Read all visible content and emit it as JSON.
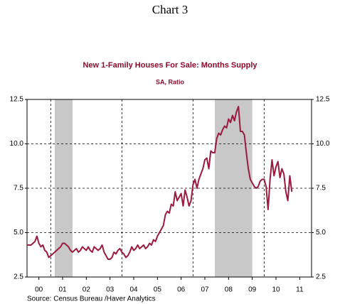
{
  "page_title": "Chart 3",
  "chart_data": {
    "type": "line",
    "title": "New 1-Family Houses For Sale: Months Supply",
    "subtitle": "SA, Ratio",
    "source": "Source:  Census Bureau /Haver Analytics",
    "color": "#9b1b3f",
    "xlim": [
      2000,
      2012
    ],
    "xticks": [
      {
        "value": 2000.5,
        "label": "00"
      },
      {
        "value": 2001.5,
        "label": "01"
      },
      {
        "value": 2002.5,
        "label": "02"
      },
      {
        "value": 2003.5,
        "label": "03"
      },
      {
        "value": 2004.5,
        "label": "04"
      },
      {
        "value": 2005.5,
        "label": "05"
      },
      {
        "value": 2006.5,
        "label": "06"
      },
      {
        "value": 2007.5,
        "label": "07"
      },
      {
        "value": 2008.5,
        "label": "08"
      },
      {
        "value": 2009.5,
        "label": "09"
      },
      {
        "value": 2010.5,
        "label": "10"
      },
      {
        "value": 2011.5,
        "label": "11"
      }
    ],
    "vlines": [
      2001,
      2004,
      2007,
      2010
    ],
    "shaded": [
      [
        2001.17,
        2001.92
      ],
      [
        2007.92,
        2009.5
      ]
    ],
    "ylim": [
      2.5,
      12.5
    ],
    "yticks": [
      2.5,
      {
        "value": 5,
        "label": "5.0"
      },
      7.5,
      {
        "value": 10,
        "label": "10.0"
      },
      12.5
    ],
    "y2lim": [
      2.5,
      12.5
    ],
    "y2ticks": [
      2.5,
      {
        "value": 5,
        "label": "5.0"
      },
      7.5,
      {
        "value": 10,
        "label": "10.0"
      },
      12.5
    ],
    "grid": true,
    "x": [
      2000,
      2000.083,
      2000.167,
      2000.25,
      2000.333,
      2000.417,
      2000.5,
      2000.583,
      2000.667,
      2000.75,
      2000.833,
      2000.917,
      2001,
      2001.083,
      2001.167,
      2001.25,
      2001.333,
      2001.417,
      2001.5,
      2001.583,
      2001.667,
      2001.75,
      2001.833,
      2001.917,
      2002,
      2002.083,
      2002.167,
      2002.25,
      2002.333,
      2002.417,
      2002.5,
      2002.583,
      2002.667,
      2002.75,
      2002.833,
      2002.917,
      2003,
      2003.083,
      2003.167,
      2003.25,
      2003.333,
      2003.417,
      2003.5,
      2003.583,
      2003.667,
      2003.75,
      2003.833,
      2003.917,
      2004,
      2004.083,
      2004.167,
      2004.25,
      2004.333,
      2004.417,
      2004.5,
      2004.583,
      2004.667,
      2004.75,
      2004.833,
      2004.917,
      2005,
      2005.083,
      2005.167,
      2005.25,
      2005.333,
      2005.417,
      2005.5,
      2005.583,
      2005.667,
      2005.75,
      2005.833,
      2005.917,
      2006,
      2006.083,
      2006.167,
      2006.25,
      2006.333,
      2006.417,
      2006.5,
      2006.583,
      2006.667,
      2006.75,
      2006.833,
      2006.917,
      2007,
      2007.083,
      2007.167,
      2007.25,
      2007.333,
      2007.417,
      2007.5,
      2007.583,
      2007.667,
      2007.75,
      2007.833,
      2007.917,
      2008,
      2008.083,
      2008.167,
      2008.25,
      2008.333,
      2008.417,
      2008.5,
      2008.583,
      2008.667,
      2008.75,
      2008.833,
      2008.917,
      2009,
      2009.083,
      2009.167,
      2009.25,
      2009.333,
      2009.417,
      2009.5,
      2009.583,
      2009.667,
      2009.75,
      2009.833,
      2009.917,
      2010,
      2010.083,
      2010.167,
      2010.25,
      2010.333,
      2010.417,
      2010.5,
      2010.583,
      2010.667,
      2010.75,
      2010.833,
      2010.917,
      2011,
      2011.083,
      2011.167
    ],
    "values": [
      4.3,
      4.3,
      4.3,
      4.4,
      4.5,
      4.8,
      4.4,
      4.2,
      4.3,
      4.0,
      3.9,
      3.6,
      3.7,
      3.8,
      3.9,
      4.0,
      4.1,
      4.2,
      4.4,
      4.4,
      4.3,
      4.2,
      4.0,
      3.9,
      4.0,
      4.1,
      3.9,
      4.0,
      4.2,
      4.1,
      4.0,
      4.2,
      4.0,
      3.9,
      4.2,
      4.1,
      4.0,
      4.1,
      4.3,
      3.9,
      3.7,
      3.5,
      3.5,
      3.6,
      3.9,
      3.8,
      4.0,
      4.1,
      3.9,
      3.8,
      3.6,
      3.7,
      3.9,
      4.2,
      4.0,
      4.1,
      4.3,
      4.1,
      4.2,
      4.3,
      4.1,
      4.2,
      4.4,
      4.3,
      4.6,
      4.5,
      4.8,
      5.0,
      5.2,
      5.4,
      6.0,
      6.2,
      6.1,
      6.6,
      6.5,
      7.3,
      6.8,
      7.0,
      7.2,
      6.5,
      7.4,
      7.0,
      6.5,
      6.8,
      7.7,
      8.0,
      7.5,
      8.0,
      8.3,
      8.6,
      9.1,
      9.2,
      8.6,
      9.6,
      9.5,
      9.5,
      10.3,
      10.6,
      10.5,
      10.8,
      11.0,
      10.9,
      11.4,
      11.2,
      11.6,
      11.3,
      11.8,
      12.1,
      10.7,
      10.7,
      10.5,
      9.5,
      8.6,
      8.0,
      7.8,
      7.6,
      7.5,
      7.6,
      7.9,
      8.0,
      8.0,
      7.6,
      6.3,
      8.0,
      9.1,
      8.2,
      8.7,
      9.0,
      8.1,
      8.6,
      8.3,
      7.3,
      6.8,
      8.2,
      7.3
    ]
  }
}
